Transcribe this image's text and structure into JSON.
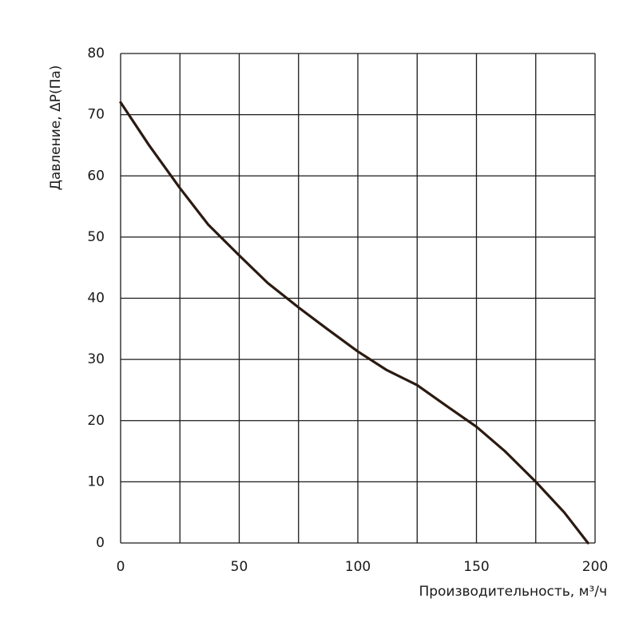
{
  "chart_data": {
    "type": "line",
    "x_label": "Производительность, м³/ч",
    "y_label": "Давление,  ΔP(Па)",
    "xlim": [
      0,
      200
    ],
    "ylim": [
      0,
      80
    ],
    "xticks": [
      0,
      50,
      100,
      150,
      200
    ],
    "xminorgrid": [
      25,
      75,
      125,
      175
    ],
    "yticks": [
      0,
      10,
      20,
      30,
      40,
      50,
      60,
      70,
      80
    ],
    "grid": true,
    "series": [
      {
        "color": "#2b1a10",
        "x": [
          0,
          12,
          25,
          37,
          50,
          62,
          75,
          87,
          100,
          112,
          125,
          137,
          150,
          162,
          175,
          187,
          197
        ],
        "values": [
          72,
          65,
          58,
          52,
          47,
          42.5,
          38.5,
          35,
          31.3,
          28.3,
          25.8,
          22.5,
          19,
          15,
          10,
          5,
          0
        ]
      }
    ]
  }
}
